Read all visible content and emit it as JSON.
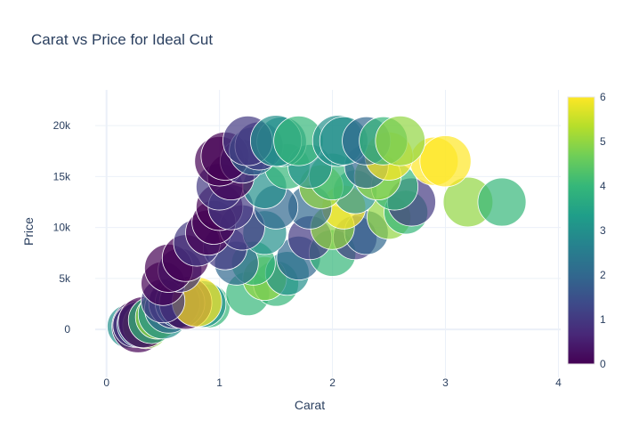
{
  "chart_data": {
    "type": "scatter",
    "title": "Carat vs Price for Ideal Cut",
    "xlabel": "Carat",
    "ylabel": "Price",
    "xlim": [
      -0.1,
      4.02
    ],
    "ylim": [
      -4700,
      23500
    ],
    "x_ticks": [
      0,
      1,
      2,
      3,
      4
    ],
    "x_tick_labels": [
      "0",
      "1",
      "2",
      "3",
      "4"
    ],
    "y_ticks": [
      0,
      5000,
      10000,
      15000,
      20000
    ],
    "y_tick_labels": [
      "0",
      "5k",
      "10k",
      "15k",
      "20k"
    ],
    "grid": true,
    "marker_opacity": 0.7,
    "colorscale": "Viridis",
    "colorscale_stops": [
      "#440154",
      "#482878",
      "#3e4989",
      "#31688e",
      "#26828e",
      "#1f9e89",
      "#35b779",
      "#6ece58",
      "#b5de2b",
      "#fde725"
    ],
    "colorbar": {
      "min": 0,
      "max": 6,
      "ticks": [
        "0",
        "1",
        "2",
        "3",
        "4",
        "5",
        "6"
      ]
    },
    "points": [
      {
        "x": 0.3,
        "y": 500,
        "c": 2,
        "s": 3.2
      },
      {
        "x": 0.25,
        "y": 400,
        "c": 1,
        "s": 3.0
      },
      {
        "x": 0.33,
        "y": 700,
        "c": 0,
        "s": 3.5
      },
      {
        "x": 0.4,
        "y": 900,
        "c": 4,
        "s": 3.2
      },
      {
        "x": 0.45,
        "y": 1200,
        "c": 5,
        "s": 3.0
      },
      {
        "x": 0.5,
        "y": 1500,
        "c": 3,
        "s": 3.4
      },
      {
        "x": 0.55,
        "y": 2000,
        "c": 2,
        "s": 3.3
      },
      {
        "x": 0.6,
        "y": 2600,
        "c": 1,
        "s": 3.5
      },
      {
        "x": 0.65,
        "y": 2600,
        "c": 2,
        "s": 3.4
      },
      {
        "x": 0.7,
        "y": 2600,
        "c": 0,
        "s": 3.6
      },
      {
        "x": 0.8,
        "y": 2700,
        "c": 6,
        "s": 3.4
      },
      {
        "x": 0.85,
        "y": 2500,
        "c": 3,
        "s": 3.2
      },
      {
        "x": 0.9,
        "y": 2300,
        "c": 4,
        "s": 3.0
      },
      {
        "x": 0.5,
        "y": 2800,
        "c": 1,
        "s": 3.0
      },
      {
        "x": 0.35,
        "y": 400,
        "c": 5,
        "s": 3.2
      },
      {
        "x": 0.2,
        "y": 300,
        "c": 3,
        "s": 3.0
      },
      {
        "x": 0.28,
        "y": 300,
        "c": 0,
        "s": 3.6
      },
      {
        "x": 0.5,
        "y": 4500,
        "c": 0,
        "s": 3.0
      },
      {
        "x": 0.55,
        "y": 6000,
        "c": 0,
        "s": 3.3
      },
      {
        "x": 0.7,
        "y": 7000,
        "c": 0,
        "s": 3.2
      },
      {
        "x": 0.8,
        "y": 8500,
        "c": 1,
        "s": 3.2
      },
      {
        "x": 0.9,
        "y": 9500,
        "c": 0,
        "s": 3.1
      },
      {
        "x": 1.0,
        "y": 12000,
        "c": 0,
        "s": 3.2
      },
      {
        "x": 1.0,
        "y": 16500,
        "c": 0,
        "s": 3.4
      },
      {
        "x": 1.05,
        "y": 17000,
        "c": 0,
        "s": 3.3
      },
      {
        "x": 1.0,
        "y": 14000,
        "c": 1,
        "s": 3.2
      },
      {
        "x": 1.1,
        "y": 15000,
        "c": 0,
        "s": 3.2
      },
      {
        "x": 1.1,
        "y": 12000,
        "c": 1,
        "s": 3.1
      },
      {
        "x": 1.2,
        "y": 10000,
        "c": 1,
        "s": 3.1
      },
      {
        "x": 1.25,
        "y": 18500,
        "c": 1,
        "s": 3.4
      },
      {
        "x": 1.3,
        "y": 17500,
        "c": 2,
        "s": 3.3
      },
      {
        "x": 1.35,
        "y": 18000,
        "c": 1,
        "s": 3.3
      },
      {
        "x": 1.5,
        "y": 18500,
        "c": 3,
        "s": 3.5
      },
      {
        "x": 1.55,
        "y": 18400,
        "c": 3,
        "s": 3.4
      },
      {
        "x": 1.7,
        "y": 18500,
        "c": 4,
        "s": 3.4
      },
      {
        "x": 1.3,
        "y": 6500,
        "c": 4,
        "s": 3.0
      },
      {
        "x": 1.4,
        "y": 5000,
        "c": 5,
        "s": 3.0
      },
      {
        "x": 1.5,
        "y": 4500,
        "c": 4,
        "s": 3.1
      },
      {
        "x": 1.25,
        "y": 3500,
        "c": 4,
        "s": 3.0
      },
      {
        "x": 1.6,
        "y": 5500,
        "c": 3,
        "s": 3.0
      },
      {
        "x": 1.7,
        "y": 7000,
        "c": 2,
        "s": 3.0
      },
      {
        "x": 1.8,
        "y": 9000,
        "c": 1,
        "s": 3.0
      },
      {
        "x": 2.0,
        "y": 7500,
        "c": 4,
        "s": 3.2
      },
      {
        "x": 2.0,
        "y": 10000,
        "c": 5,
        "s": 3.0
      },
      {
        "x": 2.1,
        "y": 12000,
        "c": 6,
        "s": 3.0
      },
      {
        "x": 2.2,
        "y": 9000,
        "c": 1,
        "s": 3.0
      },
      {
        "x": 2.3,
        "y": 9500,
        "c": 2,
        "s": 3.0
      },
      {
        "x": 2.0,
        "y": 15000,
        "c": 4,
        "s": 3.2
      },
      {
        "x": 2.05,
        "y": 18500,
        "c": 3,
        "s": 3.5
      },
      {
        "x": 2.1,
        "y": 18500,
        "c": 3,
        "s": 3.3
      },
      {
        "x": 2.3,
        "y": 18500,
        "c": 2,
        "s": 3.3
      },
      {
        "x": 2.45,
        "y": 18500,
        "c": 4,
        "s": 3.3
      },
      {
        "x": 2.6,
        "y": 18500,
        "c": 5,
        "s": 3.4
      },
      {
        "x": 2.5,
        "y": 17000,
        "c": 6,
        "s": 3.3
      },
      {
        "x": 2.4,
        "y": 15000,
        "c": 5,
        "s": 3.2
      },
      {
        "x": 2.55,
        "y": 14000,
        "c": 4,
        "s": 3.2
      },
      {
        "x": 2.7,
        "y": 12500,
        "c": 1,
        "s": 3.3
      },
      {
        "x": 2.65,
        "y": 11500,
        "c": 4,
        "s": 3.0
      },
      {
        "x": 2.5,
        "y": 11000,
        "c": 5,
        "s": 3.0
      },
      {
        "x": 2.9,
        "y": 16500,
        "c": 6,
        "s": 3.3
      },
      {
        "x": 3.0,
        "y": 16500,
        "c": 6,
        "s": 3.5
      },
      {
        "x": 3.2,
        "y": 12500,
        "c": 5,
        "s": 3.4
      },
      {
        "x": 3.5,
        "y": 12500,
        "c": 4,
        "s": 3.3
      },
      {
        "x": 1.8,
        "y": 12000,
        "c": 2,
        "s": 3.0
      },
      {
        "x": 1.9,
        "y": 14000,
        "c": 5,
        "s": 3.0
      },
      {
        "x": 1.6,
        "y": 16000,
        "c": 4,
        "s": 3.1
      },
      {
        "x": 1.4,
        "y": 14000,
        "c": 3,
        "s": 3.0
      },
      {
        "x": 1.2,
        "y": 16500,
        "c": 1,
        "s": 3.0
      },
      {
        "x": 0.95,
        "y": 10500,
        "c": 0,
        "s": 3.0
      },
      {
        "x": 1.05,
        "y": 8000,
        "c": 1,
        "s": 3.0
      },
      {
        "x": 1.15,
        "y": 6500,
        "c": 2,
        "s": 3.0
      },
      {
        "x": 0.65,
        "y": 5800,
        "c": 1,
        "s": 3.0
      },
      {
        "x": 1.4,
        "y": 9500,
        "c": 3,
        "s": 3.0
      },
      {
        "x": 2.2,
        "y": 13500,
        "c": 3,
        "s": 3.0
      },
      {
        "x": 2.3,
        "y": 16000,
        "c": 2,
        "s": 3.0
      },
      {
        "x": 1.8,
        "y": 16000,
        "c": 3,
        "s": 3.0
      },
      {
        "x": 1.5,
        "y": 12000,
        "c": 2,
        "s": 3.0
      }
    ]
  }
}
